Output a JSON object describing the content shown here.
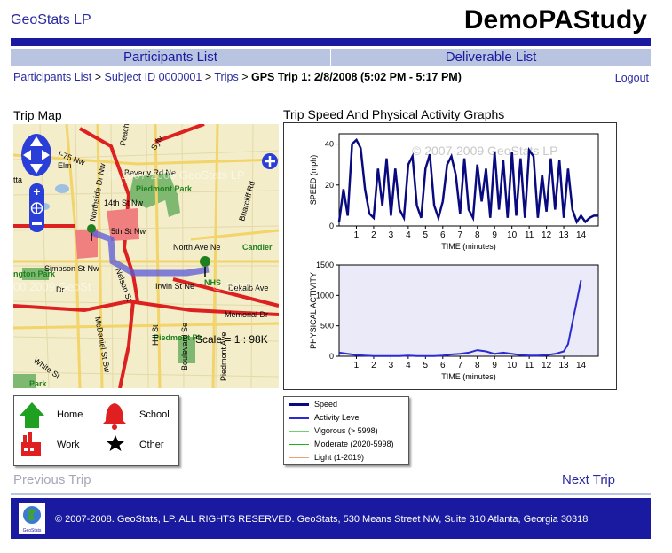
{
  "header": {
    "brand": "GeoStats LP",
    "study": "DemoPAStudy"
  },
  "nav": {
    "tabs": [
      {
        "label": "Participants List"
      },
      {
        "label": "Deliverable List"
      }
    ]
  },
  "breadcrumb": {
    "items": [
      "Participants List",
      "Subject ID 0000001",
      "Trips"
    ],
    "current": "GPS Trip 1: 2/8/2008 (5:02 PM - 5:17 PM)",
    "separator": ">"
  },
  "logout": "Logout",
  "map_section": {
    "title": "Trip Map",
    "scale": "Scale = 1 : 98K",
    "watermark1": "© 2007-2009 GeoStats LP",
    "watermark2": "00 2009 GeoSt",
    "watermark3": "© 2007-2",
    "labels": [
      "Beverly Rd Ne",
      "Piedmont Park",
      "14th St Nw",
      "5th St Nw",
      "North Ave Ne",
      "Candler",
      "Simpson St Nw",
      "Irwin St Ne",
      "Dekalb Ave",
      "Memorial Dr",
      "White St",
      "Piedmont Pk",
      "Boulevard Se",
      "Hill St",
      "Nelson St",
      "McDaniel St Sw",
      "Northside Dr Nw",
      "Peachtree",
      "Briarcliff Rd",
      "I-75 Nw",
      "Sylv",
      "Elm",
      "ngton Park",
      "Dr",
      "Park",
      "tta",
      "NHS",
      "Piedmont Ave"
    ]
  },
  "graphs_section": {
    "title": "Trip Speed And Physical Activity Graphs",
    "watermark": "© 2007-2009 GeoStats LP"
  },
  "chart_data": [
    {
      "type": "line",
      "ylabel": "SPEED (mph)",
      "xlabel": "TIME (minutes)",
      "xlim": [
        0,
        15
      ],
      "ylim": [
        0,
        45
      ],
      "xticks": [
        1,
        2,
        3,
        4,
        5,
        6,
        7,
        8,
        9,
        10,
        11,
        12,
        13,
        14
      ],
      "yticks": [
        0,
        20,
        40
      ],
      "color": "#0a0a80",
      "x": [
        0,
        0.25,
        0.5,
        0.75,
        1,
        1.25,
        1.5,
        1.75,
        2,
        2.25,
        2.5,
        2.75,
        3,
        3.25,
        3.5,
        3.75,
        4,
        4.25,
        4.5,
        4.75,
        5,
        5.25,
        5.5,
        5.75,
        6,
        6.25,
        6.5,
        6.75,
        7,
        7.25,
        7.5,
        7.75,
        8,
        8.25,
        8.5,
        8.75,
        9,
        9.25,
        9.5,
        9.75,
        10,
        10.25,
        10.5,
        10.75,
        11,
        11.25,
        11.5,
        11.75,
        12,
        12.25,
        12.5,
        12.75,
        13,
        13.25,
        13.5,
        13.75,
        14,
        14.25,
        14.5,
        14.75,
        15
      ],
      "y": [
        2,
        18,
        5,
        40,
        42,
        38,
        18,
        6,
        4,
        28,
        10,
        33,
        5,
        28,
        8,
        4,
        30,
        34,
        10,
        4,
        28,
        35,
        10,
        4,
        12,
        30,
        34,
        25,
        6,
        33,
        8,
        4,
        30,
        12,
        28,
        4,
        36,
        8,
        32,
        4,
        36,
        5,
        33,
        4,
        37,
        34,
        4,
        25,
        7,
        33,
        8,
        32,
        4,
        28,
        8,
        2,
        5,
        2,
        4,
        5,
        5
      ]
    },
    {
      "type": "line",
      "ylabel": "PHYSICAL ACTIVITY",
      "xlabel": "TIME (minutes)",
      "xlim": [
        0,
        15
      ],
      "ylim": [
        0,
        1500
      ],
      "xticks": [
        1,
        2,
        3,
        4,
        5,
        6,
        7,
        8,
        9,
        10,
        11,
        12,
        13,
        14
      ],
      "yticks": [
        0,
        500,
        1000,
        1500
      ],
      "color": "#2a2ad0",
      "x": [
        0,
        0.5,
        1,
        1.5,
        2,
        2.5,
        3,
        3.5,
        4,
        4.5,
        5,
        5.5,
        6,
        6.5,
        7,
        7.5,
        8,
        8.5,
        9,
        9.5,
        10,
        10.5,
        11,
        11.5,
        12,
        12.5,
        13,
        13.25,
        13.5,
        13.75,
        14
      ],
      "y": [
        60,
        40,
        20,
        10,
        5,
        5,
        5,
        5,
        10,
        5,
        5,
        5,
        10,
        30,
        40,
        60,
        100,
        80,
        40,
        60,
        40,
        20,
        10,
        10,
        20,
        40,
        80,
        200,
        550,
        900,
        1250
      ]
    }
  ],
  "legend_places": {
    "items": [
      {
        "label": "Home",
        "icon": "house-icon",
        "color": "#20a020"
      },
      {
        "label": "School",
        "icon": "bell-icon",
        "color": "#e02020"
      },
      {
        "label": "Work",
        "icon": "factory-icon",
        "color": "#e02020"
      },
      {
        "label": "Other",
        "icon": "star-icon",
        "color": "#000000"
      }
    ]
  },
  "legend_series": {
    "items": [
      {
        "label": "Speed",
        "color": "#0a0a80"
      },
      {
        "label": "Activity Level",
        "color": "#2a2ad0"
      },
      {
        "label": "Vigorous (> 5998)",
        "color": "#70d070"
      },
      {
        "label": "Moderate (2020-5998)",
        "color": "#20b020"
      },
      {
        "label": "Light (1-2019)",
        "color": "#f0a070"
      }
    ]
  },
  "pager": {
    "prev": "Previous Trip",
    "next": "Next Trip"
  },
  "footer": {
    "text": "© 2007-2008. GeoStats, LP. ALL RIGHTS RESERVED. GeoStats, 530 Means Street NW, Suite 310 Atlanta, Georgia 30318",
    "logo_text": "GeoStats"
  }
}
